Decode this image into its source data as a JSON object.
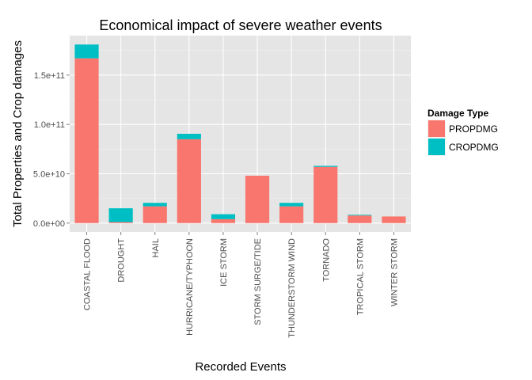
{
  "chart_data": {
    "type": "bar",
    "stacked": true,
    "title": "Economical impact of severe weather events",
    "xlabel": "Recorded Events",
    "ylabel": "Total Properties and Crop damages",
    "categories": [
      "COASTAL FLOOD",
      "DROUGHT",
      "HAIL",
      "HURRICANE/TYPHOON",
      "ICE STORM",
      "STORM SURGE/TIDE",
      "THUNDERSTORM WIND",
      "TORNADO",
      "TROPICAL STORM",
      "WINTER STORM"
    ],
    "series": [
      {
        "name": "PROPDMG",
        "color": "#F8766D",
        "values": [
          167000000000.0,
          1000000000.0,
          17000000000.0,
          85000000000.0,
          4000000000.0,
          48000000000.0,
          17000000000.0,
          57000000000.0,
          7700000000.0,
          6700000000.0
        ]
      },
      {
        "name": "CROPDMG",
        "color": "#00BFC4",
        "values": [
          14000000000.0,
          14000000000.0,
          3500000000.0,
          5500000000.0,
          5000000000.0,
          0,
          3500000000.0,
          1000000000.0,
          700000000.0,
          0
        ]
      }
    ],
    "y_ticks": [
      0,
      50000000000.0,
      100000000000.0,
      150000000000.0
    ],
    "y_tick_labels": [
      "0.0e+00",
      "5.0e+10",
      "1.0e+11",
      "1.5e+11"
    ],
    "ylim": [
      -9000000000.0,
      190000000000.0
    ],
    "legend": {
      "title": "Damage Type",
      "position": "right"
    },
    "grid": true
  }
}
